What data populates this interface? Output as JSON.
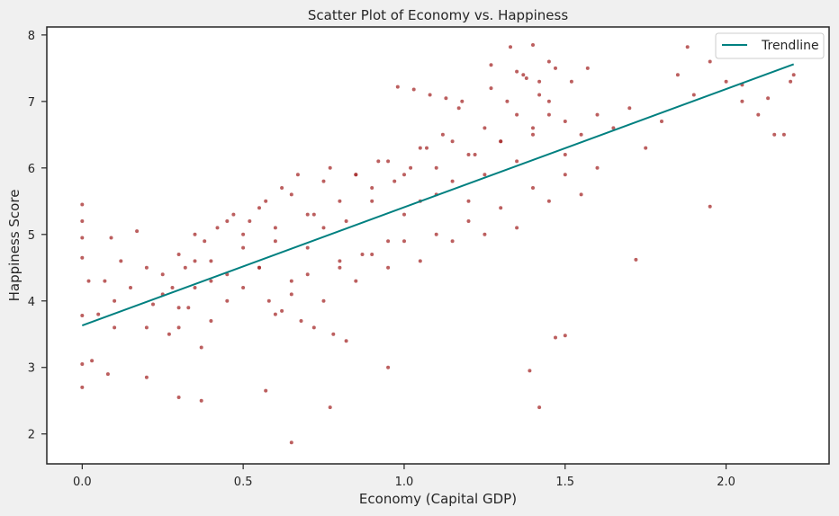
{
  "chart_data": {
    "type": "scatter",
    "title": "Scatter Plot of Economy vs. Happiness",
    "xlabel": "Economy (Capital GDP)",
    "ylabel": "Happiness Score",
    "xlim": [
      -0.11,
      2.32
    ],
    "ylim": [
      1.55,
      8.12
    ],
    "xticks": [
      0.0,
      0.5,
      1.0,
      1.5,
      2.0
    ],
    "xtick_labels": [
      "0.0",
      "0.5",
      "1.0",
      "1.5",
      "2.0"
    ],
    "yticks": [
      2,
      3,
      4,
      5,
      6,
      7,
      8
    ],
    "ytick_labels": [
      "2",
      "3",
      "4",
      "5",
      "6",
      "7",
      "8"
    ],
    "grid": false,
    "legend": {
      "position": "top-right",
      "entries": [
        "Trendline"
      ]
    },
    "colors": {
      "points": "#a52a2a",
      "trendline": "#008080",
      "axes": "#262626",
      "background": "#ffffff",
      "page": "#f0f0f0"
    },
    "series": [
      {
        "name": "Trendline",
        "type": "line",
        "x": [
          0.0,
          2.21
        ],
        "y": [
          3.63,
          7.56
        ]
      },
      {
        "type": "scatter",
        "x": [
          0.0,
          0.0,
          0.0,
          0.0,
          0.0,
          0.0,
          0.0,
          0.02,
          0.03,
          0.05,
          0.07,
          0.08,
          0.09,
          0.1,
          0.12,
          0.15,
          0.17,
          0.2,
          0.22,
          0.25,
          0.27,
          0.28,
          0.3,
          0.32,
          0.33,
          0.35,
          0.37,
          0.38,
          0.4,
          0.42,
          0.45,
          0.47,
          0.5,
          0.52,
          0.55,
          0.57,
          0.6,
          0.62,
          0.65,
          0.67,
          0.7,
          0.72,
          0.75,
          0.77,
          0.8,
          0.82,
          0.85,
          0.87,
          0.9,
          0.92,
          0.95,
          0.97,
          1.0,
          1.02,
          1.05,
          1.07,
          1.1,
          1.12,
          1.15,
          1.17,
          1.2,
          1.22,
          1.25,
          1.27,
          1.3,
          1.32,
          1.35,
          1.37,
          1.4,
          1.42,
          1.45,
          1.47,
          1.5,
          1.52,
          1.55,
          1.57,
          1.6,
          1.65,
          1.7,
          1.75,
          1.8,
          1.85,
          1.9,
          1.95,
          2.0,
          2.05,
          2.1,
          2.15,
          2.2,
          0.1,
          0.2,
          0.25,
          0.3,
          0.35,
          0.4,
          0.45,
          0.5,
          0.55,
          0.6,
          0.65,
          0.7,
          0.75,
          0.8,
          0.85,
          0.9,
          0.95,
          1.0,
          1.05,
          1.1,
          1.15,
          1.2,
          1.25,
          1.3,
          1.35,
          1.4,
          1.45,
          1.5,
          1.55,
          1.6,
          0.3,
          0.35,
          0.4,
          0.45,
          0.5,
          0.55,
          0.6,
          0.65,
          0.7,
          0.75,
          0.8,
          0.85,
          0.9,
          0.95,
          1.0,
          1.05,
          1.1,
          1.15,
          1.2,
          1.25,
          1.3,
          1.35,
          1.4,
          1.45,
          1.5,
          0.2,
          0.3,
          0.37,
          0.57,
          0.65,
          0.77,
          0.95,
          1.39,
          1.42,
          1.47,
          1.5,
          1.72,
          1.88,
          1.95,
          2.05,
          2.13,
          2.18,
          2.21,
          1.33,
          1.4,
          1.45,
          1.27,
          1.35,
          1.38,
          1.42,
          0.98,
          1.03,
          1.08,
          1.13,
          1.18,
          0.58,
          0.62,
          0.68,
          0.72,
          0.78,
          0.82
        ],
        "y": [
          5.45,
          5.2,
          4.95,
          4.65,
          3.78,
          3.05,
          2.7,
          4.3,
          3.1,
          3.8,
          4.3,
          2.9,
          4.95,
          3.6,
          4.6,
          4.2,
          5.05,
          4.5,
          3.95,
          4.1,
          3.5,
          4.2,
          3.6,
          4.5,
          3.9,
          4.6,
          3.3,
          4.9,
          4.3,
          5.1,
          4.4,
          5.3,
          4.8,
          5.2,
          4.5,
          5.5,
          4.9,
          5.7,
          4.3,
          5.9,
          4.8,
          5.3,
          5.1,
          6.0,
          4.6,
          5.2,
          5.9,
          4.7,
          5.5,
          6.1,
          4.9,
          5.8,
          5.3,
          6.0,
          5.5,
          6.3,
          5.6,
          6.5,
          5.8,
          6.9,
          5.5,
          6.2,
          5.9,
          7.2,
          6.4,
          7.0,
          6.1,
          7.4,
          6.6,
          7.1,
          6.8,
          7.5,
          6.2,
          7.3,
          6.5,
          7.5,
          6.8,
          6.6,
          6.9,
          6.3,
          6.7,
          7.4,
          7.1,
          7.6,
          7.3,
          7.0,
          6.8,
          6.5,
          7.3,
          4.0,
          3.6,
          4.4,
          3.9,
          4.2,
          3.7,
          4.0,
          4.2,
          4.5,
          3.8,
          4.1,
          4.4,
          4.0,
          4.5,
          4.3,
          4.7,
          4.5,
          4.9,
          4.6,
          5.0,
          4.9,
          5.2,
          5.0,
          5.4,
          5.1,
          5.7,
          5.5,
          5.9,
          5.6,
          6.0,
          4.7,
          5.0,
          4.6,
          5.2,
          5.0,
          5.4,
          5.1,
          5.6,
          5.3,
          5.8,
          5.5,
          5.9,
          5.7,
          6.1,
          5.9,
          6.3,
          6.0,
          6.4,
          6.2,
          6.6,
          6.4,
          6.8,
          6.5,
          7.0,
          6.7,
          2.85,
          2.55,
          2.5,
          2.65,
          1.87,
          2.4,
          3.0,
          2.95,
          2.4,
          3.45,
          3.48,
          4.62,
          7.82,
          5.42,
          7.25,
          7.05,
          6.5,
          7.4,
          7.82,
          7.85,
          7.6,
          7.55,
          7.45,
          7.35,
          7.3,
          7.22,
          7.18,
          7.1,
          7.05,
          7.0,
          4.0,
          3.85,
          3.7,
          3.6,
          3.5,
          3.4
        ]
      }
    ]
  }
}
